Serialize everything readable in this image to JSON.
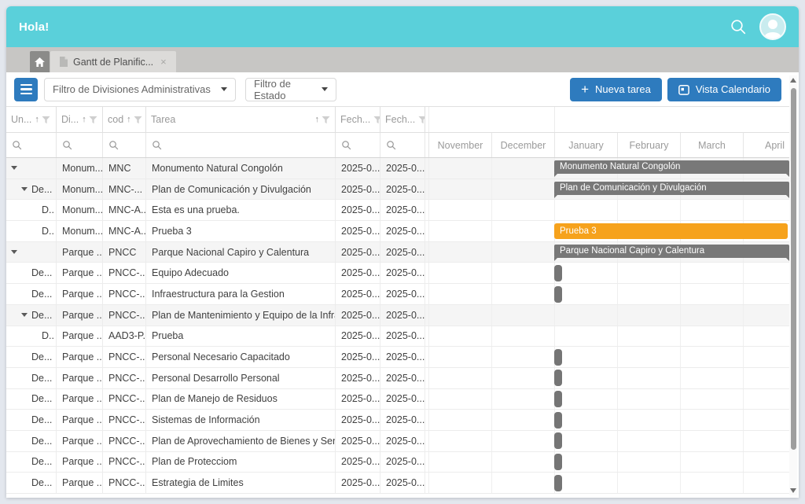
{
  "header": {
    "title": "Hola!"
  },
  "tabs": {
    "active": {
      "label": "Gantt de Planific...",
      "close_glyph": "×"
    }
  },
  "toolbar": {
    "filters": [
      {
        "label": "Filtro de Divisiones Administrativas"
      },
      {
        "label": "Filtro de Estado"
      }
    ],
    "buttons": [
      {
        "label": "Nueva tarea",
        "icon": "plus",
        "plus_glyph": "+"
      },
      {
        "label": "Vista Calendario",
        "icon": "calendar"
      }
    ]
  },
  "colors": {
    "accent_teal": "#5ad0da",
    "button_blue": "#2e7bbe",
    "bar_gray": "#787878",
    "bar_orange": "#f6a21c"
  },
  "grid": {
    "columns": [
      {
        "key": "unidad",
        "label": "Un...",
        "sort": true,
        "filter": true
      },
      {
        "key": "division",
        "label": "Di...",
        "sort": true,
        "filter": true
      },
      {
        "key": "cod",
        "label": "cod",
        "sort": true,
        "filter": true
      },
      {
        "key": "tarea",
        "label": "Tarea",
        "sort": true,
        "filter": true,
        "icons_right": true
      },
      {
        "key": "fecha_inicio",
        "label": "Fech...",
        "sort": false,
        "filter": true
      },
      {
        "key": "fecha_fin",
        "label": "Fech...",
        "sort": false,
        "filter": true
      }
    ],
    "months": [
      "November",
      "December",
      "January",
      "February",
      "March",
      "April"
    ],
    "rows": [
      {
        "unidad": "",
        "division": "Monum...",
        "cod": "MNC",
        "tarea": "Monumento Natural Congolón",
        "fecha_inicio": "2025-0...",
        "fecha_fin": "2025-0...",
        "level": 0,
        "expand_arrow": true,
        "shaded": true,
        "bar": {
          "type": "summary",
          "label": "Monumento Natural Congolón"
        }
      },
      {
        "unidad": "De...",
        "division": "Monum...",
        "cod": "MNC-...",
        "tarea": "Plan de Comunicación y Divulgación",
        "fecha_inicio": "2025-0...",
        "fecha_fin": "2025-0...",
        "level": 1,
        "expand_arrow": true,
        "shaded": true,
        "bar": {
          "type": "summary",
          "label": "Plan de Comunicación y Divulgación"
        }
      },
      {
        "unidad": "D..",
        "division": "Monum...",
        "cod": "MNC-A...",
        "tarea": "Esta es una prueba.",
        "fecha_inicio": "2025-0...",
        "fecha_fin": "2025-0...",
        "level": 2,
        "expand_arrow": false,
        "shaded": false,
        "bar": null
      },
      {
        "unidad": "D..",
        "division": "Monum...",
        "cod": "MNC-A...",
        "tarea": "Prueba 3",
        "fecha_inicio": "2025-0...",
        "fecha_fin": "2025-0...",
        "level": 2,
        "expand_arrow": false,
        "shaded": false,
        "bar": {
          "type": "task",
          "label": "Prueba 3"
        }
      },
      {
        "unidad": "",
        "division": "Parque ...",
        "cod": "PNCC",
        "tarea": "Parque Nacional Capiro y Calentura",
        "fecha_inicio": "2025-0...",
        "fecha_fin": "2025-0...",
        "level": 0,
        "expand_arrow": true,
        "shaded": true,
        "bar": {
          "type": "summary",
          "label": "Parque Nacional Capiro y Calentura"
        }
      },
      {
        "unidad": "De...",
        "division": "Parque ...",
        "cod": "PNCC-...",
        "tarea": "Equipo Adecuado",
        "fecha_inicio": "2025-0...",
        "fecha_fin": "2025-0...",
        "level": 1,
        "expand_arrow": false,
        "shaded": false,
        "bar": {
          "type": "small"
        }
      },
      {
        "unidad": "De...",
        "division": "Parque ...",
        "cod": "PNCC-...",
        "tarea": "Infraestructura para la Gestion",
        "fecha_inicio": "2025-0...",
        "fecha_fin": "2025-0...",
        "level": 1,
        "expand_arrow": false,
        "shaded": false,
        "bar": {
          "type": "small"
        }
      },
      {
        "unidad": "De...",
        "division": "Parque ...",
        "cod": "PNCC-...",
        "tarea": "Plan de Mantenimiento y Equipo de la Infrae...",
        "fecha_inicio": "2025-0...",
        "fecha_fin": "2025-0...",
        "level": 1,
        "expand_arrow": true,
        "shaded": true,
        "bar": null
      },
      {
        "unidad": "D..",
        "division": "Parque ...",
        "cod": "AAD3-P...",
        "tarea": "Prueba",
        "fecha_inicio": "2025-0...",
        "fecha_fin": "2025-0...",
        "level": 2,
        "expand_arrow": false,
        "shaded": false,
        "bar": null
      },
      {
        "unidad": "De...",
        "division": "Parque ...",
        "cod": "PNCC-...",
        "tarea": "Personal Necesario Capacitado",
        "fecha_inicio": "2025-0...",
        "fecha_fin": "2025-0...",
        "level": 1,
        "expand_arrow": false,
        "shaded": false,
        "bar": {
          "type": "small"
        }
      },
      {
        "unidad": "De...",
        "division": "Parque ...",
        "cod": "PNCC-...",
        "tarea": "Personal Desarrollo Personal",
        "fecha_inicio": "2025-0...",
        "fecha_fin": "2025-0...",
        "level": 1,
        "expand_arrow": false,
        "shaded": false,
        "bar": {
          "type": "small"
        }
      },
      {
        "unidad": "De...",
        "division": "Parque ...",
        "cod": "PNCC-...",
        "tarea": "Plan de Manejo de Residuos",
        "fecha_inicio": "2025-0...",
        "fecha_fin": "2025-0...",
        "level": 1,
        "expand_arrow": false,
        "shaded": false,
        "bar": {
          "type": "small"
        }
      },
      {
        "unidad": "De...",
        "division": "Parque ...",
        "cod": "PNCC-...",
        "tarea": "Sistemas de Información",
        "fecha_inicio": "2025-0...",
        "fecha_fin": "2025-0...",
        "level": 1,
        "expand_arrow": false,
        "shaded": false,
        "bar": {
          "type": "small"
        }
      },
      {
        "unidad": "De...",
        "division": "Parque ...",
        "cod": "PNCC-...",
        "tarea": "Plan de Aprovechamiento de Bienes y Servic...",
        "fecha_inicio": "2025-0...",
        "fecha_fin": "2025-0...",
        "level": 1,
        "expand_arrow": false,
        "shaded": false,
        "bar": {
          "type": "small"
        }
      },
      {
        "unidad": "De...",
        "division": "Parque ...",
        "cod": "PNCC-...",
        "tarea": "Plan de Protecciom",
        "fecha_inicio": "2025-0...",
        "fecha_fin": "2025-0...",
        "level": 1,
        "expand_arrow": false,
        "shaded": false,
        "bar": {
          "type": "small"
        }
      },
      {
        "unidad": "De...",
        "division": "Parque ...",
        "cod": "PNCC-...",
        "tarea": "Estrategia de Limites",
        "fecha_inicio": "2025-0...",
        "fecha_fin": "2025-0...",
        "level": 1,
        "expand_arrow": false,
        "shaded": false,
        "bar": {
          "type": "small"
        }
      }
    ]
  }
}
